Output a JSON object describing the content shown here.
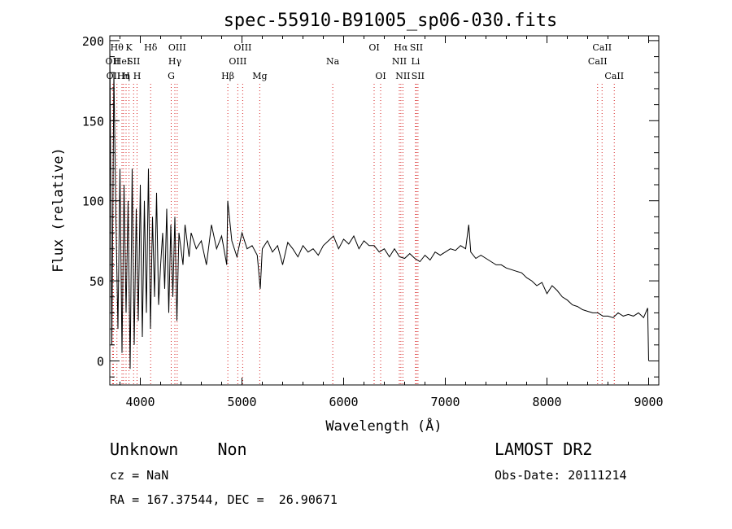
{
  "chart_data": {
    "type": "line",
    "title": "spec-55910-B91005_sp06-030.fits",
    "xlabel": "Wavelength (Å)",
    "ylabel": "Flux (relative)",
    "xlim": [
      3700,
      9100
    ],
    "ylim": [
      -15,
      203
    ],
    "x_ticks": [
      4000,
      5000,
      6000,
      7000,
      8000,
      9000
    ],
    "y_ticks": [
      0,
      50,
      100,
      150,
      200
    ],
    "grid": false,
    "line_color": "#000000",
    "marker_color": "#d62020",
    "spectrum": {
      "x": [
        3700,
        3720,
        3740,
        3760,
        3780,
        3800,
        3820,
        3840,
        3860,
        3880,
        3900,
        3920,
        3940,
        3960,
        3980,
        4000,
        4020,
        4040,
        4060,
        4080,
        4100,
        4120,
        4140,
        4160,
        4180,
        4200,
        4220,
        4240,
        4260,
        4280,
        4300,
        4320,
        4340,
        4360,
        4380,
        4400,
        4420,
        4440,
        4460,
        4480,
        4500,
        4550,
        4600,
        4650,
        4700,
        4750,
        4800,
        4850,
        4860,
        4900,
        4950,
        5000,
        5050,
        5100,
        5150,
        5180,
        5200,
        5250,
        5300,
        5350,
        5400,
        5450,
        5500,
        5550,
        5600,
        5650,
        5700,
        5750,
        5800,
        5850,
        5900,
        5950,
        6000,
        6050,
        6100,
        6150,
        6200,
        6250,
        6300,
        6350,
        6400,
        6450,
        6500,
        6550,
        6600,
        6650,
        6700,
        6750,
        6800,
        6850,
        6900,
        6950,
        7000,
        7050,
        7100,
        7150,
        7200,
        7230,
        7250,
        7300,
        7350,
        7400,
        7450,
        7500,
        7550,
        7600,
        7650,
        7700,
        7750,
        7800,
        7850,
        7900,
        7950,
        8000,
        8050,
        8100,
        8150,
        8200,
        8250,
        8300,
        8350,
        8400,
        8450,
        8500,
        8550,
        8600,
        8650,
        8700,
        8750,
        8800,
        8850,
        8900,
        8950,
        8990,
        9000
      ],
      "y": [
        200,
        10,
        180,
        90,
        20,
        120,
        5,
        110,
        30,
        100,
        -5,
        120,
        10,
        95,
        25,
        110,
        15,
        100,
        30,
        120,
        20,
        90,
        40,
        105,
        35,
        60,
        80,
        45,
        95,
        30,
        85,
        40,
        90,
        25,
        80,
        70,
        60,
        85,
        75,
        65,
        80,
        70,
        75,
        60,
        85,
        70,
        78,
        60,
        100,
        75,
        65,
        80,
        70,
        72,
        66,
        45,
        70,
        75,
        68,
        72,
        60,
        74,
        70,
        65,
        72,
        68,
        70,
        66,
        72,
        75,
        78,
        70,
        76,
        73,
        78,
        70,
        75,
        72,
        72,
        68,
        70,
        65,
        70,
        65,
        64,
        67,
        64,
        62,
        66,
        63,
        68,
        66,
        68,
        70,
        69,
        72,
        70,
        85,
        68,
        64,
        66,
        64,
        62,
        60,
        60,
        58,
        57,
        56,
        55,
        52,
        50,
        47,
        49,
        42,
        47,
        44,
        40,
        38,
        35,
        34,
        32,
        31,
        30,
        30,
        28,
        28,
        27,
        30,
        28,
        29,
        28,
        30,
        27,
        33,
        0
      ]
    },
    "line_markers": [
      {
        "wave": 3727,
        "label": "OII",
        "row": 1
      },
      {
        "wave": 3736,
        "label": "OII",
        "row": 2
      },
      {
        "wave": 3770,
        "label": "Hθ",
        "row": 0
      },
      {
        "wave": 3820,
        "label": "HeI",
        "row": 1
      },
      {
        "wave": 3835,
        "label": "Hη",
        "row": 2
      },
      {
        "wave": 3860,
        "label": "H",
        "row": 2
      },
      {
        "wave": 3889,
        "label": "K",
        "row": 0
      },
      {
        "wave": 3934,
        "label": "SII",
        "row": 1
      },
      {
        "wave": 3968,
        "label": "H",
        "row": 2
      },
      {
        "wave": 4102,
        "label": "Hδ",
        "row": 0
      },
      {
        "wave": 4304,
        "label": "G",
        "row": 2
      },
      {
        "wave": 4340,
        "label": "Hγ",
        "row": 1
      },
      {
        "wave": 4363,
        "label": "OIII",
        "row": 0
      },
      {
        "wave": 4861,
        "label": "Hβ",
        "row": 2
      },
      {
        "wave": 4959,
        "label": "OIII",
        "row": 1
      },
      {
        "wave": 5007,
        "label": "OIII",
        "row": 0
      },
      {
        "wave": 5175,
        "label": "Mg",
        "row": 2
      },
      {
        "wave": 5893,
        "label": "Na",
        "row": 1
      },
      {
        "wave": 6300,
        "label": "OI",
        "row": 0
      },
      {
        "wave": 6364,
        "label": "OI",
        "row": 2
      },
      {
        "wave": 6548,
        "label": "NII",
        "row": 1
      },
      {
        "wave": 6563,
        "label": "Hα",
        "row": 0
      },
      {
        "wave": 6583,
        "label": "NII",
        "row": 2
      },
      {
        "wave": 6707,
        "label": "Li",
        "row": 1
      },
      {
        "wave": 6716,
        "label": "SII",
        "row": 0
      },
      {
        "wave": 6731,
        "label": "SII",
        "row": 2
      },
      {
        "wave": 8498,
        "label": "CaII",
        "row": 1
      },
      {
        "wave": 8542,
        "label": "CaII",
        "row": 0
      },
      {
        "wave": 8662,
        "label": "CaII",
        "row": 2
      }
    ]
  },
  "info": {
    "class_text": "Unknown    Non",
    "cz_text": "cz = NaN",
    "radec_text": "RA = 167.37544, DEC =  26.90671",
    "survey_text": "LAMOST DR2",
    "obsdate_text": "Obs-Date: 20111214"
  }
}
